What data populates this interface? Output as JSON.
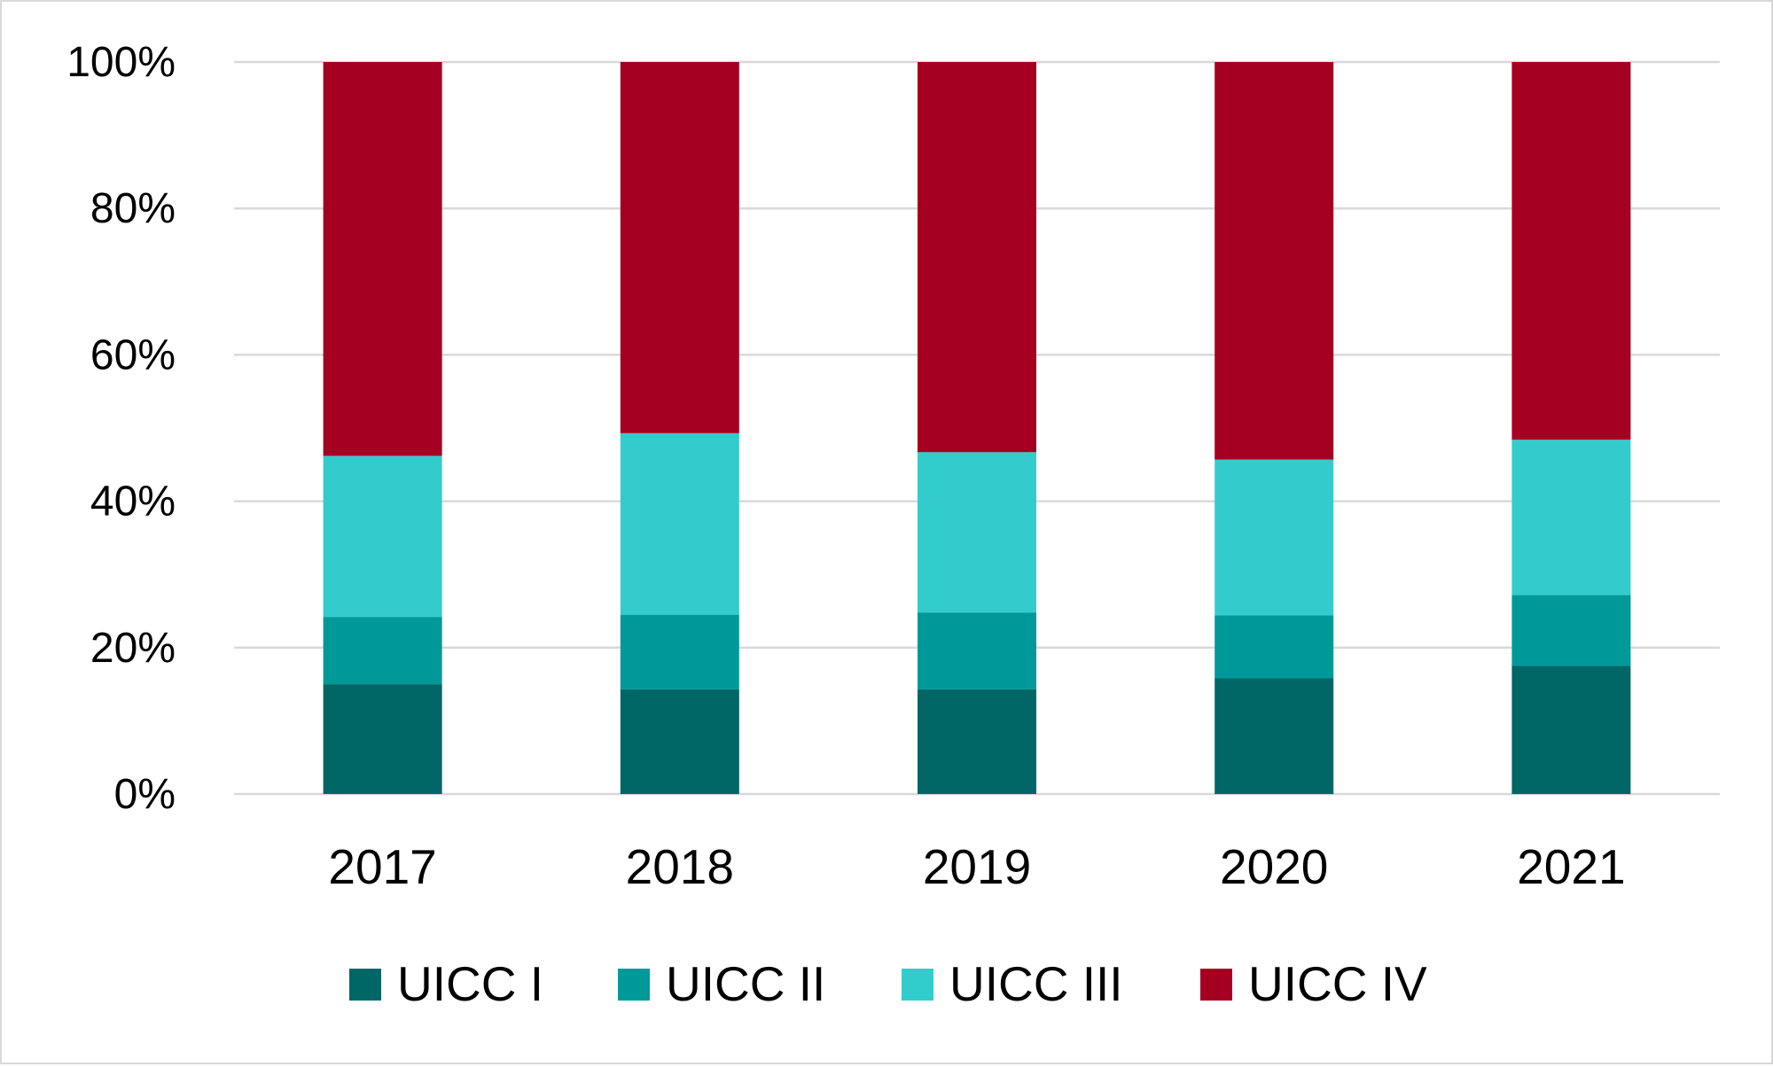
{
  "chart_data": {
    "type": "bar",
    "stacked": "percent",
    "title": "",
    "xlabel": "",
    "ylabel": "",
    "categories": [
      "2017",
      "2018",
      "2019",
      "2020",
      "2021"
    ],
    "ylim": [
      0,
      100
    ],
    "yticks": [
      0,
      20,
      40,
      60,
      80,
      100
    ],
    "ytick_labels": [
      "0%",
      "20%",
      "40%",
      "60%",
      "80%",
      "100%"
    ],
    "grid": true,
    "legend_position": "bottom",
    "series": [
      {
        "name": "UICC I",
        "color": "#006666",
        "values": [
          15,
          14.3,
          14.3,
          15.8,
          17.5
        ]
      },
      {
        "name": "UICC II",
        "color": "#009999",
        "values": [
          9.2,
          10.2,
          10.5,
          8.6,
          9.7
        ]
      },
      {
        "name": "UICC III",
        "color": "#33CCCC",
        "values": [
          22,
          24.8,
          21.9,
          21.3,
          21.2
        ]
      },
      {
        "name": "UICC IV",
        "color": "#A50021",
        "values": [
          53.8,
          50.7,
          53.3,
          54.3,
          51.6
        ]
      }
    ]
  }
}
